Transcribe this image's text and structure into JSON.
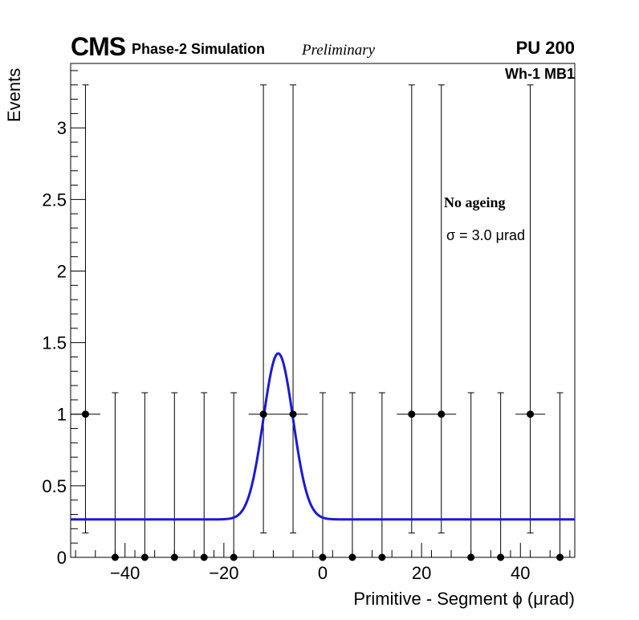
{
  "header": {
    "experiment": "CMS",
    "subtitle": "Phase-2 Simulation",
    "status": "Preliminary",
    "pileup": "PU 200",
    "chamber": "Wh-1 MB1"
  },
  "legend": {
    "condition": "No ageing",
    "sigma": "σ = 3.0  μrad"
  },
  "colors": {
    "fit": "#1a1ad6",
    "points": "#000000"
  },
  "chart_data": {
    "type": "scatter",
    "title": "",
    "xlabel": "Primitive - Segment ϕ (μrad)",
    "ylabel": "Events",
    "xlim": [
      -51,
      51
    ],
    "ylim": [
      0,
      3.45
    ],
    "x_ticks": [
      -40,
      -20,
      0,
      20,
      40
    ],
    "x_tick_labels": [
      "−40",
      "−20",
      "0",
      "20",
      "40"
    ],
    "y_ticks": [
      0,
      0.5,
      1,
      1.5,
      2,
      2.5,
      3
    ],
    "y_tick_labels": [
      "0",
      "0.5",
      "1",
      "1.5",
      "2",
      "2.5",
      "3"
    ],
    "grid": false,
    "series": [
      {
        "name": "data",
        "bin_half_width": 3,
        "x": [
          -48,
          -42,
          -36,
          -30,
          -24,
          -18,
          -12,
          -6,
          0,
          6,
          12,
          18,
          24,
          30,
          36,
          42,
          48
        ],
        "y": [
          1,
          0,
          0,
          0,
          0,
          0,
          1,
          1,
          0,
          0,
          0,
          1,
          1,
          0,
          0,
          1,
          0
        ],
        "y_err_low": [
          0.83,
          0,
          0,
          0,
          0,
          0,
          0.83,
          0.83,
          0,
          0,
          0,
          0.83,
          0.83,
          0,
          0,
          0.83,
          0
        ],
        "y_err_high": [
          2.3,
          1.15,
          1.15,
          1.15,
          1.15,
          1.15,
          2.3,
          2.3,
          1.15,
          1.15,
          1.15,
          2.3,
          2.3,
          1.15,
          1.15,
          2.3,
          1.15
        ]
      },
      {
        "name": "gaussian fit",
        "type": "line",
        "mean": -9,
        "sigma": 3.0,
        "amplitude": 1.16,
        "baseline": 0.265
      }
    ]
  }
}
